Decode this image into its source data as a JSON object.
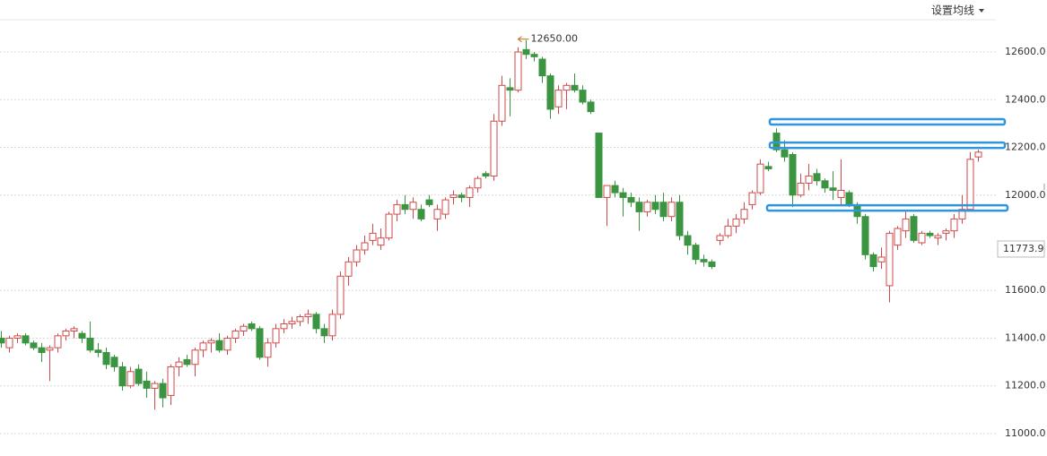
{
  "chart_data": {
    "type": "candlestick",
    "menu_label": "设置均线",
    "ylim": [
      10906,
      12818
    ],
    "yticks": [
      {
        "value": 11000,
        "label": "11000.0"
      },
      {
        "value": 11200,
        "label": "11200.0"
      },
      {
        "value": 11400,
        "label": "11400.0"
      },
      {
        "value": 11600,
        "label": "11600.0"
      },
      {
        "value": 12000,
        "label": "12000.0"
      },
      {
        "value": 12200,
        "label": "12200.0"
      },
      {
        "value": 12400,
        "label": "12400.0"
      },
      {
        "value": 12600,
        "label": "12600.0"
      }
    ],
    "grid": true,
    "up_color": "#d04a4a",
    "down_color": "#3a9440",
    "max_marker": {
      "value": 12650,
      "label": "12650.00",
      "color": "#c86a10"
    },
    "last_price": 11773.9,
    "level_color": "#2f95dc",
    "levels": [
      12307,
      12209,
      11946
    ],
    "ohlc": [
      [
        11400,
        11430,
        11360,
        11380
      ],
      [
        11360,
        11410,
        11340,
        11400
      ],
      [
        11400,
        11420,
        11380,
        11410
      ],
      [
        11410,
        11420,
        11370,
        11380
      ],
      [
        11380,
        11390,
        11350,
        11360
      ],
      [
        11360,
        11380,
        11300,
        11340
      ],
      [
        11350,
        11370,
        11220,
        11360
      ],
      [
        11360,
        11420,
        11340,
        11410
      ],
      [
        11410,
        11440,
        11390,
        11430
      ],
      [
        11430,
        11450,
        11400,
        11440
      ],
      [
        11420,
        11430,
        11380,
        11400
      ],
      [
        11400,
        11470,
        11340,
        11350
      ],
      [
        11350,
        11380,
        11320,
        11340
      ],
      [
        11340,
        11360,
        11270,
        11290
      ],
      [
        11320,
        11330,
        11260,
        11280
      ],
      [
        11280,
        11300,
        11180,
        11200
      ],
      [
        11200,
        11280,
        11190,
        11260
      ],
      [
        11270,
        11290,
        11200,
        11210
      ],
      [
        11220,
        11260,
        11150,
        11190
      ],
      [
        11190,
        11220,
        11100,
        11210
      ],
      [
        11210,
        11230,
        11110,
        11150
      ],
      [
        11160,
        11290,
        11120,
        11280
      ],
      [
        11280,
        11320,
        11240,
        11300
      ],
      [
        11310,
        11330,
        11280,
        11290
      ],
      [
        11290,
        11360,
        11240,
        11350
      ],
      [
        11350,
        11390,
        11320,
        11380
      ],
      [
        11380,
        11400,
        11340,
        11390
      ],
      [
        11390,
        11420,
        11340,
        11350
      ],
      [
        11350,
        11410,
        11330,
        11400
      ],
      [
        11400,
        11440,
        11380,
        11430
      ],
      [
        11430,
        11460,
        11410,
        11450
      ],
      [
        11460,
        11470,
        11430,
        11440
      ],
      [
        11440,
        11450,
        11310,
        11320
      ],
      [
        11320,
        11400,
        11280,
        11380
      ],
      [
        11380,
        11460,
        11360,
        11440
      ],
      [
        11440,
        11480,
        11420,
        11460
      ],
      [
        11460,
        11490,
        11440,
        11470
      ],
      [
        11470,
        11500,
        11450,
        11490
      ],
      [
        11490,
        11520,
        11460,
        11500
      ],
      [
        11500,
        11510,
        11420,
        11440
      ],
      [
        11440,
        11460,
        11380,
        11410
      ],
      [
        11410,
        11520,
        11390,
        11500
      ],
      [
        11500,
        11680,
        11480,
        11660
      ],
      [
        11660,
        11740,
        11620,
        11720
      ],
      [
        11720,
        11790,
        11700,
        11770
      ],
      [
        11770,
        11830,
        11750,
        11800
      ],
      [
        11810,
        11880,
        11790,
        11840
      ],
      [
        11790,
        11860,
        11770,
        11820
      ],
      [
        11820,
        11930,
        11810,
        11920
      ],
      [
        11920,
        11980,
        11890,
        11960
      ],
      [
        11960,
        12000,
        11920,
        11940
      ],
      [
        11940,
        11990,
        11900,
        11970
      ],
      [
        11940,
        11960,
        11890,
        11900
      ],
      [
        11980,
        12000,
        11950,
        11960
      ],
      [
        11900,
        11960,
        11850,
        11940
      ],
      [
        11920,
        11990,
        11900,
        11980
      ],
      [
        11990,
        12020,
        11960,
        12000
      ],
      [
        12000,
        12010,
        11970,
        11990
      ],
      [
        11990,
        12040,
        11950,
        12030
      ],
      [
        12030,
        12080,
        12010,
        12070
      ],
      [
        12090,
        12100,
        12070,
        12080
      ],
      [
        12080,
        12340,
        12060,
        12310
      ],
      [
        12310,
        12500,
        12290,
        12460
      ],
      [
        12450,
        12490,
        12330,
        12440
      ],
      [
        12440,
        12620,
        12430,
        12600
      ],
      [
        12610,
        12650,
        12570,
        12590
      ],
      [
        12590,
        12600,
        12560,
        12580
      ],
      [
        12570,
        12580,
        12470,
        12500
      ],
      [
        12500,
        12510,
        12320,
        12360
      ],
      [
        12370,
        12460,
        12340,
        12440
      ],
      [
        12440,
        12470,
        12360,
        12460
      ],
      [
        12460,
        12510,
        12430,
        12440
      ],
      [
        12440,
        12460,
        12380,
        12390
      ],
      [
        12390,
        12400,
        12340,
        12350
      ],
      [
        12260,
        12260,
        11990,
        11990
      ],
      [
        11990,
        12040,
        11870,
        12040
      ],
      [
        12040,
        12060,
        11990,
        12010
      ],
      [
        12010,
        12030,
        11910,
        11990
      ],
      [
        11990,
        12010,
        11950,
        11970
      ],
      [
        11970,
        11990,
        11850,
        11930
      ],
      [
        11930,
        11980,
        11910,
        11970
      ],
      [
        11970,
        12000,
        11920,
        11940
      ],
      [
        11970,
        12010,
        11890,
        11910
      ],
      [
        11910,
        11990,
        11890,
        11970
      ],
      [
        11970,
        12000,
        11810,
        11830
      ],
      [
        11830,
        11850,
        11750,
        11790
      ],
      [
        11790,
        11800,
        11710,
        11730
      ],
      [
        11730,
        11750,
        11700,
        11720
      ],
      [
        11720,
        11730,
        11690,
        11700
      ],
      [
        11810,
        11840,
        11790,
        11830
      ],
      [
        11830,
        11900,
        11820,
        11870
      ],
      [
        11870,
        11920,
        11840,
        11900
      ],
      [
        11900,
        11970,
        11880,
        11940
      ],
      [
        11960,
        12020,
        11940,
        12010
      ],
      [
        12010,
        12150,
        12000,
        12130
      ],
      [
        12120,
        12140,
        12100,
        12110
      ],
      [
        12260,
        12280,
        12180,
        12190
      ],
      [
        12190,
        12230,
        12140,
        12160
      ],
      [
        12170,
        12180,
        11950,
        12000
      ],
      [
        12000,
        12090,
        11990,
        12050
      ],
      [
        12050,
        12130,
        12020,
        12080
      ],
      [
        12090,
        12110,
        12040,
        12060
      ],
      [
        12060,
        12070,
        12010,
        12030
      ],
      [
        12030,
        12100,
        11980,
        12020
      ],
      [
        11990,
        12150,
        11960,
        12020
      ],
      [
        12010,
        12020,
        11950,
        11960
      ],
      [
        11960,
        11970,
        11880,
        11910
      ],
      [
        11910,
        11920,
        11730,
        11750
      ],
      [
        11750,
        11760,
        11680,
        11700
      ],
      [
        11720,
        11780,
        11690,
        11740
      ],
      [
        11620,
        11850,
        11550,
        11840
      ],
      [
        11790,
        11870,
        11770,
        11860
      ],
      [
        11850,
        11930,
        11820,
        11900
      ],
      [
        11910,
        11920,
        11800,
        11810
      ],
      [
        11800,
        11850,
        11790,
        11840
      ],
      [
        11840,
        11850,
        11820,
        11830
      ],
      [
        11820,
        11840,
        11790,
        11830
      ],
      [
        11840,
        11860,
        11810,
        11850
      ],
      [
        11850,
        11920,
        11820,
        11900
      ],
      [
        11900,
        12000,
        11880,
        11940
      ],
      [
        11940,
        12180,
        11930,
        12150
      ],
      [
        12160,
        12190,
        12140,
        12180
      ]
    ]
  }
}
